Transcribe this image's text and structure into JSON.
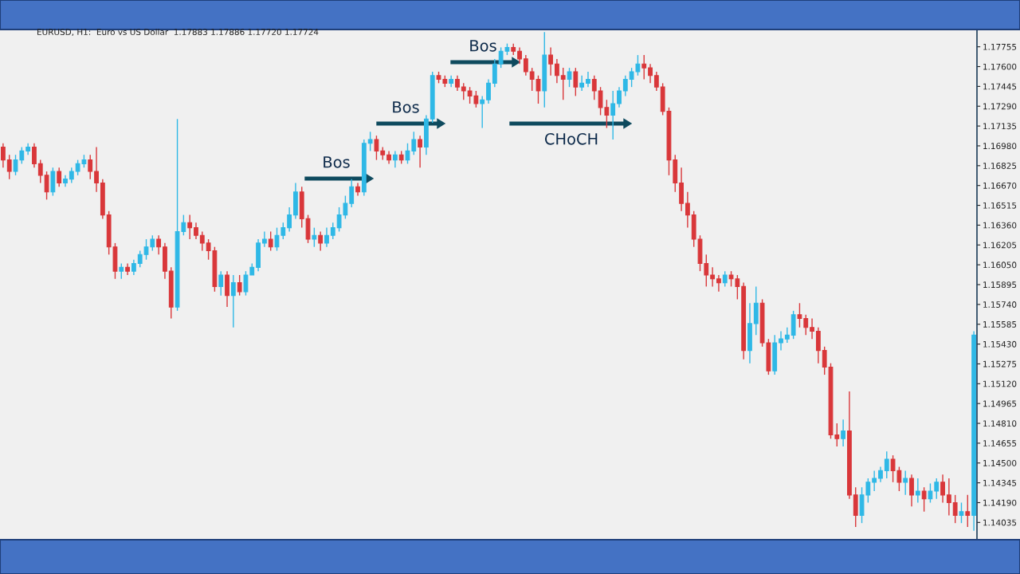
{
  "chart_data": {
    "type": "candlestick",
    "annotations": [
      "EURUSD, H1:  Euro vs US Dollar  1.17883 1.17886 1.17720 1.17724",
      "Bos",
      "Bos",
      "Bos",
      "CHoCH"
    ],
    "ylim": [
      1.139,
      1.1789
    ],
    "yticks": [
      {
        "value": 1.17755,
        "label": "1.17755"
      },
      {
        "value": 1.176,
        "label": "1.17600"
      },
      {
        "value": 1.17445,
        "label": "1.17445"
      },
      {
        "value": 1.1729,
        "label": "1.17290"
      },
      {
        "value": 1.17135,
        "label": "1.17135"
      },
      {
        "value": 1.1698,
        "label": "1.16980"
      },
      {
        "value": 1.16825,
        "label": "1.16825"
      },
      {
        "value": 1.1667,
        "label": "1.16670"
      },
      {
        "value": 1.16515,
        "label": "1.16515"
      },
      {
        "value": 1.1636,
        "label": "1.16360"
      },
      {
        "value": 1.16205,
        "label": "1.16205"
      },
      {
        "value": 1.1605,
        "label": "1.16050"
      },
      {
        "value": 1.15895,
        "label": "1.15895"
      },
      {
        "value": 1.1574,
        "label": "1.15740"
      },
      {
        "value": 1.15585,
        "label": "1.15585"
      },
      {
        "value": 1.1543,
        "label": "1.15430"
      },
      {
        "value": 1.15275,
        "label": "1.15275"
      },
      {
        "value": 1.1512,
        "label": "1.15120"
      },
      {
        "value": 1.14965,
        "label": "1.14965"
      },
      {
        "value": 1.1481,
        "label": "1.14810"
      },
      {
        "value": 1.14655,
        "label": "1.14655"
      },
      {
        "value": 1.145,
        "label": "1.14500"
      },
      {
        "value": 1.14345,
        "label": "1.14345"
      },
      {
        "value": 1.1419,
        "label": "1.14190"
      },
      {
        "value": 1.14035,
        "label": "1.14035"
      }
    ],
    "tick_labels": "y",
    "grid": false,
    "categories": [
      null,
      null,
      null,
      null,
      null,
      null,
      null,
      null,
      null,
      null,
      null,
      null,
      null,
      null,
      null,
      null,
      null,
      null,
      null,
      null,
      null,
      null,
      null,
      null,
      null,
      null,
      null,
      null,
      null,
      null,
      null,
      null,
      null,
      null,
      null,
      null,
      null,
      null,
      null,
      null,
      null,
      null,
      null,
      null,
      null,
      null,
      null,
      null,
      null,
      null,
      null,
      null,
      null,
      null,
      null,
      null,
      null,
      null,
      null,
      null,
      null,
      null,
      null,
      null,
      null,
      null,
      null,
      null,
      null,
      null,
      null,
      null,
      null,
      null,
      null,
      null,
      null,
      null,
      null,
      null,
      null,
      null,
      null,
      null,
      null,
      null,
      null,
      null,
      null,
      null,
      null,
      null,
      null,
      null,
      null,
      null,
      null,
      null,
      null,
      null,
      null,
      null,
      null,
      null,
      null,
      null,
      null,
      null,
      null,
      null,
      null,
      null,
      null,
      null,
      null,
      null,
      null,
      null,
      null,
      null,
      null,
      null,
      null,
      null,
      null,
      null,
      null,
      null,
      null,
      null,
      null,
      null,
      null,
      null,
      null,
      null,
      null,
      null,
      null,
      null,
      null,
      null,
      null,
      null,
      null,
      null,
      null,
      null,
      null,
      null,
      null,
      null,
      null,
      null,
      null,
      null,
      null
    ],
    "ohlc": [
      [
        1.1697,
        1.17,
        1.1681,
        1.1687
      ],
      [
        1.1687,
        1.1691,
        1.1672,
        1.1678
      ],
      [
        1.1678,
        1.1691,
        1.1675,
        1.1687
      ],
      [
        1.1687,
        1.1697,
        1.1684,
        1.1694
      ],
      [
        1.1694,
        1.17,
        1.1691,
        1.1697
      ],
      [
        1.1697,
        1.17,
        1.1681,
        1.1684
      ],
      [
        1.1684,
        1.1687,
        1.1669,
        1.1675
      ],
      [
        1.1675,
        1.1678,
        1.1656,
        1.1662
      ],
      [
        1.1662,
        1.1681,
        1.1659,
        1.1678
      ],
      [
        1.1678,
        1.1681,
        1.1666,
        1.1669
      ],
      [
        1.1669,
        1.1675,
        1.1666,
        1.1672
      ],
      [
        1.1672,
        1.1681,
        1.1669,
        1.1678
      ],
      [
        1.1678,
        1.1687,
        1.1675,
        1.1684
      ],
      [
        1.1684,
        1.1691,
        1.1681,
        1.1687
      ],
      [
        1.1687,
        1.1691,
        1.1672,
        1.1678
      ],
      [
        1.1678,
        1.1697,
        1.1662,
        1.1669
      ],
      [
        1.1669,
        1.1672,
        1.1641,
        1.1644
      ],
      [
        1.1644,
        1.1647,
        1.1613,
        1.1619
      ],
      [
        1.1619,
        1.1622,
        1.1594,
        1.16
      ],
      [
        1.16,
        1.1606,
        1.1594,
        1.1603
      ],
      [
        1.1603,
        1.1606,
        1.1597,
        1.16
      ],
      [
        1.16,
        1.1609,
        1.1597,
        1.1606
      ],
      [
        1.1606,
        1.1616,
        1.1603,
        1.1613
      ],
      [
        1.1613,
        1.1625,
        1.1609,
        1.1619
      ],
      [
        1.1619,
        1.1628,
        1.1616,
        1.1625
      ],
      [
        1.1625,
        1.1628,
        1.1613,
        1.1619
      ],
      [
        1.1619,
        1.1622,
        1.1594,
        1.16
      ],
      [
        1.16,
        1.1603,
        1.1563,
        1.1572
      ],
      [
        1.1572,
        1.1719,
        1.1569,
        1.1631
      ],
      [
        1.1631,
        1.1644,
        1.1628,
        1.1638
      ],
      [
        1.1638,
        1.1644,
        1.1625,
        1.1634
      ],
      [
        1.1634,
        1.1638,
        1.1625,
        1.1628
      ],
      [
        1.1628,
        1.1631,
        1.1616,
        1.1622
      ],
      [
        1.1622,
        1.1625,
        1.1609,
        1.1616
      ],
      [
        1.1616,
        1.1619,
        1.1584,
        1.1588
      ],
      [
        1.1588,
        1.16,
        1.1581,
        1.1597
      ],
      [
        1.1597,
        1.16,
        1.1572,
        1.1581
      ],
      [
        1.1581,
        1.1597,
        1.1556,
        1.1591
      ],
      [
        1.1591,
        1.1597,
        1.1581,
        1.1584
      ],
      [
        1.1584,
        1.16,
        1.1581,
        1.1597
      ],
      [
        1.1597,
        1.1606,
        1.1597,
        1.1603
      ],
      [
        1.1603,
        1.1625,
        1.16,
        1.1622
      ],
      [
        1.1622,
        1.1631,
        1.1619,
        1.1625
      ],
      [
        1.1625,
        1.1631,
        1.1616,
        1.1619
      ],
      [
        1.1619,
        1.1634,
        1.1616,
        1.1628
      ],
      [
        1.1628,
        1.1638,
        1.1625,
        1.1634
      ],
      [
        1.1634,
        1.165,
        1.1631,
        1.1644
      ],
      [
        1.1644,
        1.1669,
        1.1641,
        1.1662
      ],
      [
        1.1662,
        1.1666,
        1.1634,
        1.1641
      ],
      [
        1.1641,
        1.1644,
        1.1622,
        1.1625
      ],
      [
        1.1625,
        1.1634,
        1.1619,
        1.1628
      ],
      [
        1.1628,
        1.1631,
        1.1616,
        1.1622
      ],
      [
        1.1622,
        1.1634,
        1.1619,
        1.1628
      ],
      [
        1.1628,
        1.1638,
        1.1625,
        1.1634
      ],
      [
        1.1634,
        1.165,
        1.1631,
        1.1644
      ],
      [
        1.1644,
        1.1659,
        1.1641,
        1.1653
      ],
      [
        1.1653,
        1.1672,
        1.165,
        1.1666
      ],
      [
        1.1666,
        1.1669,
        1.1659,
        1.1662
      ],
      [
        1.1662,
        1.1703,
        1.1659,
        1.17
      ],
      [
        1.17,
        1.1709,
        1.1694,
        1.1703
      ],
      [
        1.1703,
        1.1706,
        1.1687,
        1.1694
      ],
      [
        1.1694,
        1.1697,
        1.1687,
        1.1691
      ],
      [
        1.1691,
        1.1694,
        1.1684,
        1.1687
      ],
      [
        1.1687,
        1.1694,
        1.1681,
        1.1691
      ],
      [
        1.1691,
        1.1694,
        1.1684,
        1.1687
      ],
      [
        1.1687,
        1.17,
        1.1684,
        1.1694
      ],
      [
        1.1694,
        1.1709,
        1.1691,
        1.1703
      ],
      [
        1.1703,
        1.1706,
        1.1681,
        1.1697
      ],
      [
        1.1697,
        1.1722,
        1.1691,
        1.1719
      ],
      [
        1.1719,
        1.1756,
        1.1716,
        1.1753
      ],
      [
        1.1753,
        1.1756,
        1.1747,
        1.175
      ],
      [
        1.175,
        1.1753,
        1.1744,
        1.1747
      ],
      [
        1.1747,
        1.1753,
        1.1744,
        1.175
      ],
      [
        1.175,
        1.1753,
        1.1741,
        1.1744
      ],
      [
        1.1744,
        1.1747,
        1.1734,
        1.1741
      ],
      [
        1.1741,
        1.1744,
        1.1731,
        1.1737
      ],
      [
        1.1737,
        1.1741,
        1.1728,
        1.1731
      ],
      [
        1.1731,
        1.1737,
        1.1712,
        1.1734
      ],
      [
        1.1734,
        1.175,
        1.1731,
        1.1747
      ],
      [
        1.1747,
        1.1766,
        1.1744,
        1.1762
      ],
      [
        1.1762,
        1.1775,
        1.1759,
        1.1772
      ],
      [
        1.1772,
        1.1778,
        1.1769,
        1.1775
      ],
      [
        1.1775,
        1.1778,
        1.1769,
        1.1772
      ],
      [
        1.1772,
        1.1775,
        1.1762,
        1.1766
      ],
      [
        1.1766,
        1.1769,
        1.1753,
        1.1756
      ],
      [
        1.1756,
        1.1759,
        1.1741,
        1.175
      ],
      [
        1.175,
        1.1753,
        1.1731,
        1.1741
      ],
      [
        1.1741,
        1.1787,
        1.1728,
        1.1769
      ],
      [
        1.1769,
        1.1775,
        1.1753,
        1.1762
      ],
      [
        1.1762,
        1.1766,
        1.1747,
        1.1753
      ],
      [
        1.1753,
        1.1759,
        1.1734,
        1.175
      ],
      [
        1.175,
        1.1759,
        1.1744,
        1.1756
      ],
      [
        1.1756,
        1.1759,
        1.1737,
        1.1744
      ],
      [
        1.1744,
        1.1753,
        1.1741,
        1.1747
      ],
      [
        1.1747,
        1.1756,
        1.1744,
        1.175
      ],
      [
        1.175,
        1.1753,
        1.1734,
        1.1741
      ],
      [
        1.1741,
        1.1744,
        1.1722,
        1.1728
      ],
      [
        1.1728,
        1.1734,
        1.1712,
        1.1722
      ],
      [
        1.1722,
        1.1741,
        1.1703,
        1.1731
      ],
      [
        1.1731,
        1.1744,
        1.1728,
        1.1741
      ],
      [
        1.1741,
        1.1753,
        1.1737,
        1.175
      ],
      [
        1.175,
        1.1759,
        1.1744,
        1.1756
      ],
      [
        1.1756,
        1.1769,
        1.1753,
        1.1762
      ],
      [
        1.1762,
        1.1769,
        1.175,
        1.1759
      ],
      [
        1.1759,
        1.1762,
        1.1747,
        1.1753
      ],
      [
        1.1753,
        1.1756,
        1.1741,
        1.1744
      ],
      [
        1.1744,
        1.1747,
        1.1722,
        1.1725
      ],
      [
        1.1725,
        1.1728,
        1.1675,
        1.1687
      ],
      [
        1.1687,
        1.1691,
        1.1662,
        1.1669
      ],
      [
        1.1669,
        1.1681,
        1.1647,
        1.1653
      ],
      [
        1.1653,
        1.1662,
        1.1634,
        1.1644
      ],
      [
        1.1644,
        1.1647,
        1.1619,
        1.1625
      ],
      [
        1.1625,
        1.1628,
        1.16,
        1.1606
      ],
      [
        1.1606,
        1.1613,
        1.1588,
        1.1597
      ],
      [
        1.1597,
        1.1603,
        1.1588,
        1.1594
      ],
      [
        1.1594,
        1.1597,
        1.1584,
        1.1591
      ],
      [
        1.1591,
        1.16,
        1.1588,
        1.1597
      ],
      [
        1.1597,
        1.16,
        1.1588,
        1.1594
      ],
      [
        1.1594,
        1.1597,
        1.1578,
        1.1588
      ],
      [
        1.1588,
        1.1591,
        1.1531,
        1.1538
      ],
      [
        1.1538,
        1.1575,
        1.1528,
        1.1559
      ],
      [
        1.1559,
        1.1588,
        1.155,
        1.1575
      ],
      [
        1.1575,
        1.1578,
        1.1541,
        1.1544
      ],
      [
        1.1544,
        1.1547,
        1.1519,
        1.1522
      ],
      [
        1.1522,
        1.155,
        1.1519,
        1.1544
      ],
      [
        1.1544,
        1.1553,
        1.1538,
        1.1547
      ],
      [
        1.1547,
        1.1556,
        1.1544,
        1.155
      ],
      [
        1.155,
        1.1569,
        1.1547,
        1.1566
      ],
      [
        1.1566,
        1.1575,
        1.1556,
        1.1563
      ],
      [
        1.1563,
        1.1566,
        1.155,
        1.1556
      ],
      [
        1.1556,
        1.1563,
        1.1547,
        1.1553
      ],
      [
        1.1553,
        1.1556,
        1.1528,
        1.1538
      ],
      [
        1.1538,
        1.1541,
        1.1519,
        1.1525
      ],
      [
        1.1525,
        1.1528,
        1.1469,
        1.1472
      ],
      [
        1.1472,
        1.1481,
        1.1463,
        1.1469
      ],
      [
        1.1469,
        1.1484,
        1.1463,
        1.1475
      ],
      [
        1.1475,
        1.1506,
        1.1422,
        1.1425
      ],
      [
        1.1425,
        1.1431,
        1.14,
        1.1409
      ],
      [
        1.1409,
        1.1431,
        1.1403,
        1.1425
      ],
      [
        1.1425,
        1.1438,
        1.1419,
        1.1435
      ],
      [
        1.1435,
        1.1444,
        1.1428,
        1.1438
      ],
      [
        1.1438,
        1.1447,
        1.1435,
        1.1444
      ],
      [
        1.1444,
        1.1459,
        1.1438,
        1.1453
      ],
      [
        1.1453,
        1.1456,
        1.1435,
        1.1444
      ],
      [
        1.1444,
        1.1447,
        1.1428,
        1.1435
      ],
      [
        1.1435,
        1.1444,
        1.1425,
        1.1438
      ],
      [
        1.1438,
        1.1441,
        1.1416,
        1.1425
      ],
      [
        1.1425,
        1.1438,
        1.1419,
        1.1428
      ],
      [
        1.1428,
        1.1431,
        1.1412,
        1.1422
      ],
      [
        1.1422,
        1.1434,
        1.1419,
        1.1428
      ],
      [
        1.1428,
        1.1438,
        1.1422,
        1.1435
      ],
      [
        1.1435,
        1.1441,
        1.1419,
        1.1425
      ],
      [
        1.1425,
        1.1438,
        1.1409,
        1.1419
      ],
      [
        1.1419,
        1.1425,
        1.1403,
        1.1409
      ],
      [
        1.1409,
        1.1419,
        1.1403,
        1.1412
      ],
      [
        1.1412,
        1.1425,
        1.14,
        1.1409
      ],
      [
        1.1409,
        1.1553,
        1.1397,
        1.155
      ]
    ]
  }
}
